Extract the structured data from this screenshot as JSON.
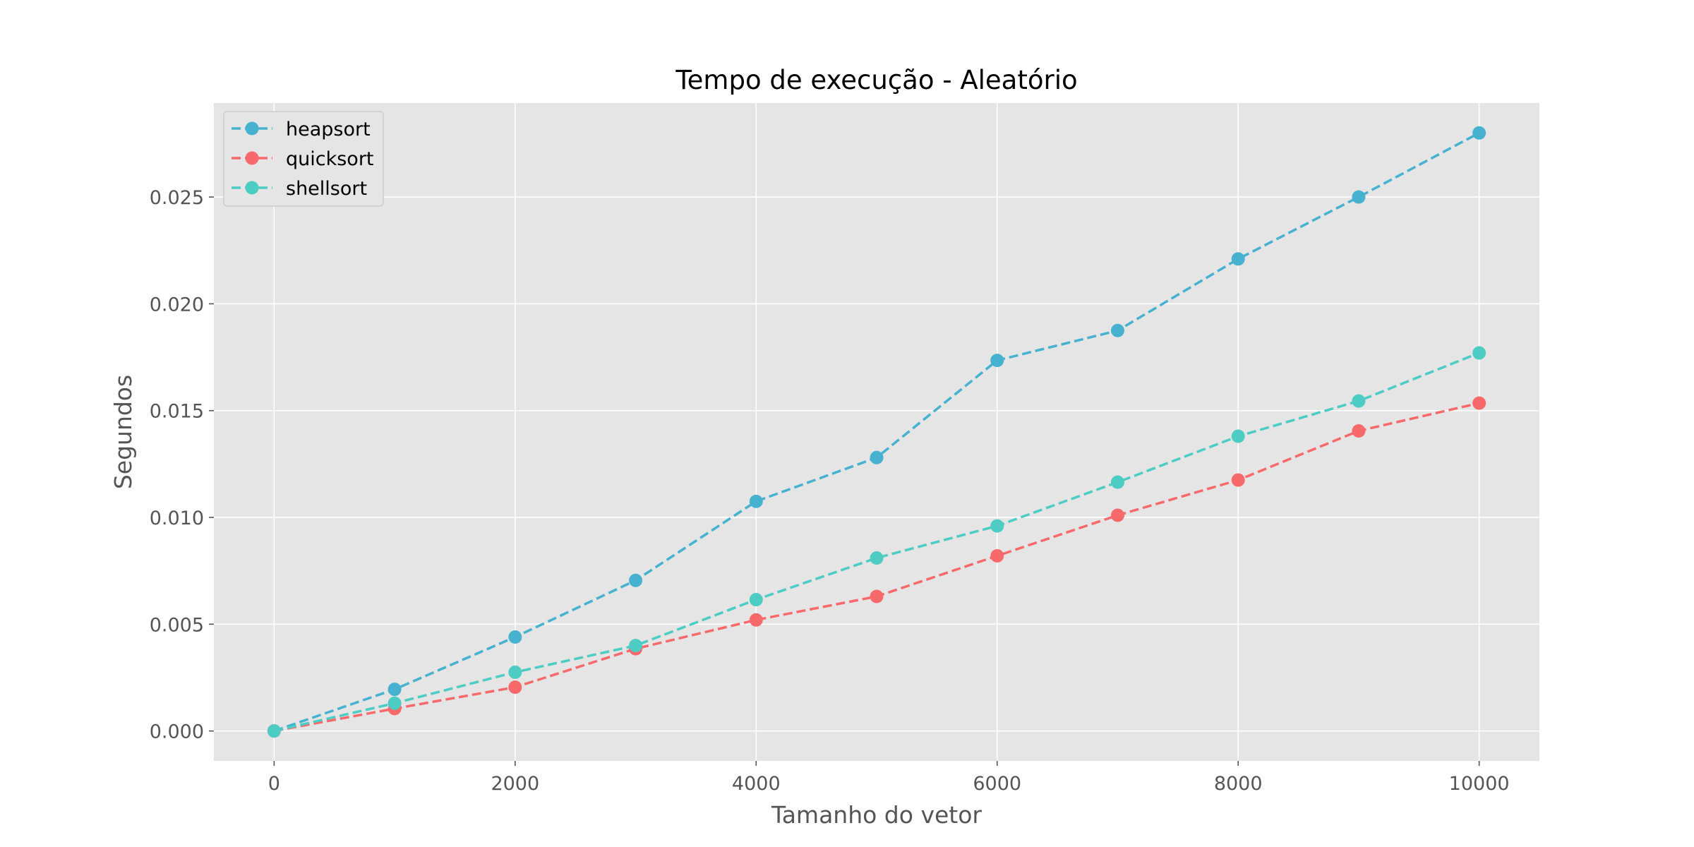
{
  "chart_data": {
    "type": "line",
    "title": "Tempo de execução - Aleatório",
    "xlabel": "Tamanho do vetor",
    "ylabel": "Segundos",
    "x": [
      0,
      1000,
      2000,
      3000,
      4000,
      5000,
      6000,
      7000,
      8000,
      9000,
      10000
    ],
    "xlim": [
      -500,
      10500
    ],
    "ylim": [
      -0.0014,
      0.0294
    ],
    "xticks": [
      "0",
      "2000",
      "4000",
      "6000",
      "8000",
      "10000"
    ],
    "yticks": [
      "0.000",
      "0.005",
      "0.010",
      "0.015",
      "0.020",
      "0.025"
    ],
    "grid": true,
    "legend_position": "top-left",
    "background": "#e5e5e5",
    "series": [
      {
        "name": "heapsort",
        "color": "#46b2cf",
        "values": [
          0.0,
          0.00195,
          0.0044,
          0.00705,
          0.01075,
          0.0128,
          0.01735,
          0.01875,
          0.0221,
          0.025,
          0.028
        ]
      },
      {
        "name": "quicksort",
        "color": "#f7696a",
        "values": [
          0.0,
          0.00105,
          0.00205,
          0.00385,
          0.0052,
          0.0063,
          0.0082,
          0.0101,
          0.01175,
          0.01405,
          0.01535
        ]
      },
      {
        "name": "shellsort",
        "color": "#4dccc3",
        "values": [
          0.0,
          0.0013,
          0.00275,
          0.004,
          0.00615,
          0.0081,
          0.0096,
          0.01165,
          0.0138,
          0.01545,
          0.0177
        ]
      }
    ]
  }
}
